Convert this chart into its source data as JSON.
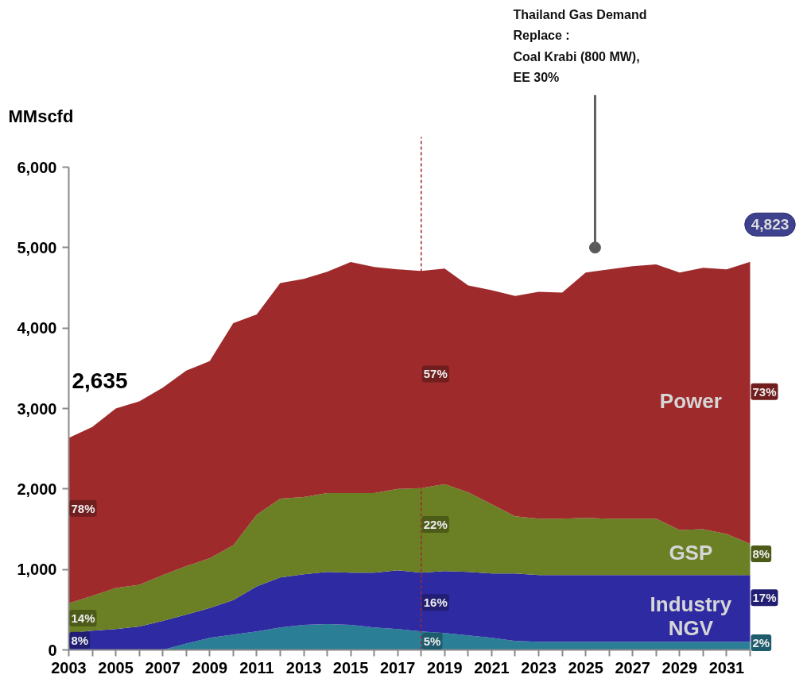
{
  "chart_data": {
    "type": "area",
    "stacked": true,
    "ylabel": "MMscfd",
    "x": [
      2003,
      2004,
      2005,
      2006,
      2007,
      2008,
      2009,
      2010,
      2011,
      2012,
      2013,
      2014,
      2015,
      2016,
      2017,
      2018,
      2019,
      2020,
      2021,
      2022,
      2023,
      2024,
      2025,
      2026,
      2027,
      2028,
      2029,
      2030,
      2031,
      2032
    ],
    "xlim": [
      2003,
      2032
    ],
    "xticks": [
      2003,
      {
        "value": 2004,
        "label": null
      },
      2005,
      {
        "value": 2006,
        "label": null
      },
      2007,
      {
        "value": 2008,
        "label": null
      },
      2009,
      {
        "value": 2010,
        "label": null
      },
      2011,
      {
        "value": 2012,
        "label": null
      },
      2013,
      {
        "value": 2014,
        "label": null
      },
      2015,
      {
        "value": 2016,
        "label": null
      },
      2017,
      {
        "value": 2018,
        "label": null
      },
      2019,
      {
        "value": 2020,
        "label": null
      },
      2021,
      {
        "value": 2022,
        "label": null
      },
      2023,
      {
        "value": 2024,
        "label": null
      },
      2025,
      {
        "value": 2026,
        "label": null
      },
      2027,
      {
        "value": 2028,
        "label": null
      },
      2029,
      {
        "value": 2030,
        "label": null
      },
      2031,
      {
        "value": 2032,
        "label": null
      }
    ],
    "ylim": [
      0,
      6000
    ],
    "yticks": [
      0,
      {
        "value": 1000,
        "label": "1,000"
      },
      {
        "value": 2000,
        "label": "2,000"
      },
      {
        "value": 3000,
        "label": "3,000"
      },
      {
        "value": 4000,
        "label": "4,000"
      },
      {
        "value": 5000,
        "label": "5,000"
      },
      {
        "value": 6000,
        "label": "6,000"
      }
    ],
    "series": [
      {
        "name": "NGV",
        "color": "#2a7f97",
        "values": [
          0,
          0,
          0,
          0,
          0,
          80,
          150,
          190,
          230,
          280,
          310,
          320,
          310,
          280,
          260,
          230,
          210,
          180,
          150,
          110,
          100,
          100,
          100,
          100,
          100,
          100,
          100,
          100,
          100,
          100
        ]
      },
      {
        "name": "Industry",
        "color": "#2e2ba2",
        "values": [
          210,
          240,
          260,
          290,
          360,
          360,
          370,
          430,
          560,
          620,
          630,
          650,
          650,
          680,
          730,
          730,
          770,
          790,
          800,
          840,
          830,
          830,
          830,
          830,
          830,
          830,
          830,
          830,
          830,
          830
        ]
      },
      {
        "name": "GSP",
        "color": "#6b7f24",
        "values": [
          370,
          430,
          510,
          520,
          570,
          600,
          620,
          680,
          890,
          980,
          960,
          980,
          990,
          990,
          1010,
          1050,
          1080,
          990,
          860,
          710,
          700,
          700,
          710,
          700,
          700,
          700,
          560,
          570,
          510,
          390
        ]
      },
      {
        "name": "Power",
        "color": "#9e2a2b",
        "values": [
          2055,
          2100,
          2230,
          2280,
          2330,
          2430,
          2450,
          2760,
          2490,
          2680,
          2710,
          2750,
          2870,
          2810,
          2730,
          2700,
          2680,
          2570,
          2660,
          2740,
          2820,
          2810,
          3050,
          3100,
          3140,
          3160,
          3200,
          3250,
          3290,
          3503
        ]
      }
    ],
    "ref_lines": [
      {
        "axis": "x",
        "value": 2018,
        "color": "#a0282d",
        "line_style": "dashed"
      }
    ],
    "annotations": [
      {
        "text": "2,635",
        "x": 2003,
        "y": 2635
      },
      {
        "text": "4,823",
        "x": 2032,
        "y": 4823
      },
      {
        "text": "Thailand Gas Demand\nReplace :\nCoal Krabi (800 MW),\nEE 30%",
        "x": 2025.4,
        "y": 5000
      },
      {
        "text": "78%",
        "x": 2003,
        "y": 1760
      },
      {
        "text": "14%",
        "x": 2003,
        "y": 395
      },
      {
        "text": "8%",
        "x": 2003,
        "y": 120
      },
      {
        "text": "57%",
        "x": 2018,
        "y": 3430
      },
      {
        "text": "22%",
        "x": 2018,
        "y": 1560
      },
      {
        "text": "16%",
        "x": 2018,
        "y": 590
      },
      {
        "text": "5%",
        "x": 2018,
        "y": 110
      },
      {
        "text": "73%",
        "x": 2032,
        "y": 3210
      },
      {
        "text": "8%",
        "x": 2032,
        "y": 1195
      },
      {
        "text": "17%",
        "x": 2032,
        "y": 650
      },
      {
        "text": "2%",
        "x": 2032,
        "y": 90
      }
    ]
  }
}
